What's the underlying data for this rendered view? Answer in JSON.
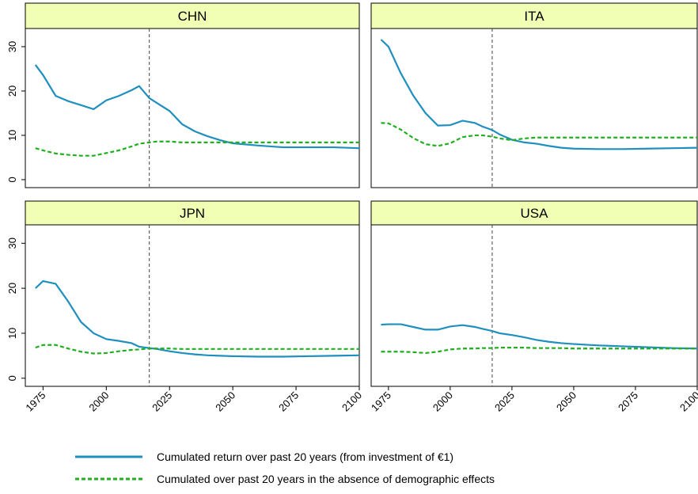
{
  "chart_data": {
    "type": "line",
    "x": [
      1972,
      1975,
      1980,
      1985,
      1990,
      1995,
      2000,
      2005,
      2010,
      2013,
      2017,
      2020,
      2025,
      2030,
      2035,
      2040,
      2045,
      2050,
      2060,
      2070,
      2080,
      2090,
      2100
    ],
    "xlim": [
      1968,
      2100
    ],
    "xticks": [
      1975,
      2000,
      2025,
      2050,
      2075,
      2100
    ],
    "ylim": [
      -1.8,
      34.1
    ],
    "yticks": [
      0,
      10,
      20,
      30
    ],
    "vline": 2017,
    "legend": [
      {
        "name": "Cumulated return over past 20 years (from investment of €1)",
        "color": "#1f8fbf",
        "dash": false
      },
      {
        "name": "Cumulated over past 20 years in the absence of demographic effects",
        "color": "#1faf1f",
        "dash": true
      }
    ],
    "panels": [
      {
        "title": "CHN",
        "series": [
          {
            "values": [
              25.9,
              23.6,
              18.9,
              17.7,
              16.8,
              15.9,
              17.9,
              18.9,
              20.2,
              21.1,
              18.4,
              17.3,
              15.5,
              12.5,
              10.9,
              9.8,
              8.9,
              8.2,
              7.7,
              7.3,
              7.3,
              7.3,
              7.1
            ]
          },
          {
            "values": [
              7.1,
              6.6,
              5.9,
              5.6,
              5.4,
              5.4,
              6.0,
              6.6,
              7.5,
              8.1,
              8.4,
              8.6,
              8.6,
              8.4,
              8.4,
              8.4,
              8.4,
              8.4,
              8.4,
              8.4,
              8.4,
              8.4,
              8.4
            ]
          }
        ]
      },
      {
        "title": "ITA",
        "series": [
          {
            "values": [
              31.6,
              30.0,
              24.0,
              19.0,
              15.0,
              12.2,
              12.3,
              13.3,
              12.8,
              12.0,
              11.2,
              10.2,
              9.0,
              8.4,
              8.1,
              7.6,
              7.2,
              7.0,
              6.9,
              6.9,
              7.0,
              7.1,
              7.2
            ]
          },
          {
            "values": [
              12.8,
              12.7,
              11.3,
              9.4,
              8.0,
              7.6,
              8.2,
              9.6,
              10.0,
              10.0,
              9.7,
              9.3,
              8.9,
              9.3,
              9.5,
              9.5,
              9.5,
              9.5,
              9.5,
              9.5,
              9.5,
              9.5,
              9.5
            ]
          }
        ]
      },
      {
        "title": "JPN",
        "series": [
          {
            "values": [
              20.0,
              21.6,
              21.0,
              17.0,
              12.5,
              10.0,
              8.7,
              8.3,
              7.8,
              7.0,
              6.7,
              6.5,
              6.0,
              5.6,
              5.3,
              5.1,
              5.0,
              4.9,
              4.8,
              4.8,
              4.9,
              5.0,
              5.1
            ]
          },
          {
            "values": [
              6.8,
              7.4,
              7.4,
              6.6,
              5.9,
              5.5,
              5.6,
              6.0,
              6.3,
              6.4,
              6.6,
              6.6,
              6.6,
              6.5,
              6.5,
              6.5,
              6.5,
              6.5,
              6.5,
              6.5,
              6.5,
              6.5,
              6.5
            ]
          }
        ]
      },
      {
        "title": "USA",
        "series": [
          {
            "values": [
              11.9,
              12.0,
              12.0,
              11.4,
              10.8,
              10.8,
              11.5,
              11.8,
              11.4,
              11.0,
              10.5,
              10.0,
              9.6,
              9.1,
              8.5,
              8.1,
              7.8,
              7.6,
              7.3,
              7.1,
              6.9,
              6.7,
              6.6
            ]
          },
          {
            "values": [
              5.9,
              5.9,
              5.9,
              5.8,
              5.6,
              5.9,
              6.4,
              6.6,
              6.6,
              6.7,
              6.7,
              6.8,
              6.8,
              6.8,
              6.7,
              6.7,
              6.7,
              6.6,
              6.6,
              6.6,
              6.6,
              6.6,
              6.6
            ]
          }
        ]
      }
    ]
  }
}
